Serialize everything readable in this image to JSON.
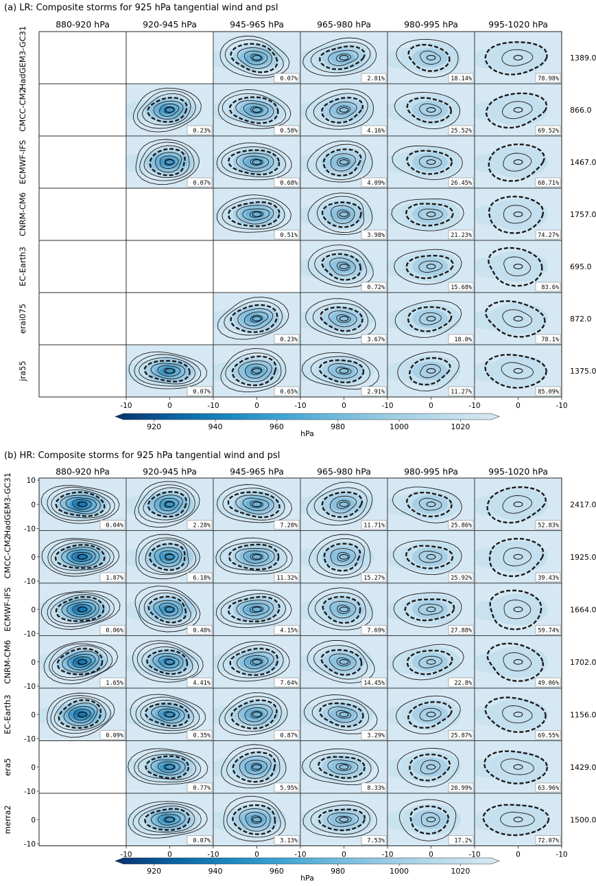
{
  "panels": [
    {
      "title": "(a) LR: Composite storms for 925 hPa tangential wind and psl",
      "columns": [
        "880-920 hPa",
        "920-945 hPa",
        "945-965 hPa",
        "965-980 hPa",
        "980-995 hPa",
        "995-1020 hPa"
      ],
      "rows": [
        {
          "model": "HadGEM3-GC31",
          "count": "1389.0",
          "cells": [
            null,
            null,
            "0.07%",
            "2.81%",
            "18.14%",
            "78.98%"
          ]
        },
        {
          "model": "CMCC-CM2",
          "count": "866.0",
          "cells": [
            null,
            "0.23%",
            "0.58%",
            "4.16%",
            "25.52%",
            "69.52%"
          ]
        },
        {
          "model": "ECMWF-IFS",
          "count": "1467.0",
          "cells": [
            null,
            "0.07%",
            "0.68%",
            "4.09%",
            "26.45%",
            "68.71%"
          ]
        },
        {
          "model": "CNRM-CM6",
          "count": "1757.0",
          "cells": [
            null,
            null,
            "0.51%",
            "3.98%",
            "21.23%",
            "74.27%"
          ]
        },
        {
          "model": "EC-Earth3",
          "count": "695.0",
          "cells": [
            null,
            null,
            null,
            "0.72%",
            "15.68%",
            "83.6%"
          ]
        },
        {
          "model": "erai075",
          "count": "872.0",
          "cells": [
            null,
            null,
            "0.23%",
            "3.67%",
            "18.0%",
            "78.1%"
          ]
        },
        {
          "model": "jra55",
          "count": "1375.0",
          "cells": [
            null,
            "0.07%",
            "0.65%",
            "2.91%",
            "11.27%",
            "85.09%"
          ]
        }
      ],
      "x_ticks": [
        "-10",
        "0",
        "-10",
        "0",
        "-10",
        "0",
        "-10",
        "0",
        "-10",
        "0",
        "-10",
        "0",
        "10"
      ],
      "y_ticks": [],
      "colorbar": {
        "ticks": [
          "920",
          "940",
          "960",
          "980",
          "1000",
          "1020"
        ],
        "label": "hPa"
      }
    },
    {
      "title": "(b) HR: Composite storms for 925 hPa tangential wind and psl",
      "columns": [
        "880-920 hPa",
        "920-945 hPa",
        "945-965 hPa",
        "965-980 hPa",
        "980-995 hPa",
        "995-1020 hPa"
      ],
      "rows": [
        {
          "model": "HadGEM3-GC31",
          "count": "2417.0",
          "cells": [
            "0.04%",
            "2.28%",
            "7.28%",
            "11.71%",
            "25.86%",
            "52.83%"
          ]
        },
        {
          "model": "CMCC-CM2",
          "count": "1925.0",
          "cells": [
            "1.87%",
            "6.18%",
            "11.32%",
            "15.27%",
            "25.92%",
            "39.43%"
          ]
        },
        {
          "model": "ECMWF-IFS",
          "count": "1664.0",
          "cells": [
            "0.06%",
            "0.48%",
            "4.15%",
            "7.69%",
            "27.88%",
            "59.74%"
          ]
        },
        {
          "model": "CNRM-CM6",
          "count": "1702.0",
          "cells": [
            "1.65%",
            "4.41%",
            "7.64%",
            "14.45%",
            "22.8%",
            "49.06%"
          ]
        },
        {
          "model": "EC-Earth3",
          "count": "1156.0",
          "cells": [
            "0.09%",
            "0.35%",
            "0.87%",
            "3.29%",
            "25.87%",
            "69.55%"
          ]
        },
        {
          "model": "era5",
          "count": "1429.0",
          "cells": [
            null,
            "0.77%",
            "5.95%",
            "8.33%",
            "20.99%",
            "63.96%"
          ]
        },
        {
          "model": "merra2",
          "count": "1500.0",
          "cells": [
            null,
            "0.07%",
            "3.13%",
            "7.53%",
            "17.2%",
            "72.07%"
          ]
        }
      ],
      "x_ticks": [
        "-10",
        "0",
        "-10",
        "0",
        "-10",
        "0",
        "-10",
        "0",
        "-10",
        "0",
        "-10",
        "0",
        "10"
      ],
      "y_ticks": [
        "10",
        "0",
        "-10"
      ],
      "colorbar": {
        "ticks": [
          "920",
          "940",
          "960",
          "980",
          "1000",
          "1020"
        ],
        "label": "hPa"
      }
    }
  ],
  "chart_data": [
    {
      "type": "heatmap",
      "title": "(a) LR: Composite storms for 925 hPa tangential wind and psl",
      "x": [
        "880-920 hPa",
        "920-945 hPa",
        "945-965 hPa",
        "965-980 hPa",
        "980-995 hPa",
        "995-1020 hPa"
      ],
      "y": [
        "HadGEM3-GC31",
        "CMCC-CM2",
        "ECMWF-IFS",
        "CNRM-CM6",
        "EC-Earth3",
        "erai075",
        "jra55"
      ],
      "values": [
        [
          null,
          null,
          0.07,
          2.81,
          18.14,
          78.98
        ],
        [
          null,
          0.23,
          0.58,
          4.16,
          25.52,
          69.52
        ],
        [
          null,
          0.07,
          0.68,
          4.09,
          26.45,
          68.71
        ],
        [
          null,
          null,
          0.51,
          3.98,
          21.23,
          74.27
        ],
        [
          null,
          null,
          null,
          0.72,
          15.68,
          83.6
        ],
        [
          null,
          null,
          0.23,
          3.67,
          18.0,
          78.1
        ],
        [
          null,
          0.07,
          0.65,
          2.91,
          11.27,
          85.09
        ]
      ],
      "row_totals": [
        1389.0,
        866.0,
        1467.0,
        1757.0,
        695.0,
        872.0,
        1375.0
      ],
      "subplot_xlim": [
        -10,
        10
      ],
      "colorbar": {
        "range": [
          910,
          1030
        ],
        "ticks": [
          920,
          940,
          960,
          980,
          1000,
          1020
        ],
        "label": "hPa",
        "colors": [
          "#08306b",
          "#0b5fa0",
          "#1786bf",
          "#3ea3d4",
          "#6fbadc",
          "#9ccce3",
          "#bddcec",
          "#d9eaf3"
        ]
      }
    },
    {
      "type": "heatmap",
      "title": "(b) HR: Composite storms for 925 hPa tangential wind and psl",
      "x": [
        "880-920 hPa",
        "920-945 hPa",
        "945-965 hPa",
        "965-980 hPa",
        "980-995 hPa",
        "995-1020 hPa"
      ],
      "y": [
        "HadGEM3-GC31",
        "CMCC-CM2",
        "ECMWF-IFS",
        "CNRM-CM6",
        "EC-Earth3",
        "era5",
        "merra2"
      ],
      "values": [
        [
          0.04,
          2.28,
          7.28,
          11.71,
          25.86,
          52.83
        ],
        [
          1.87,
          6.18,
          11.32,
          15.27,
          25.92,
          39.43
        ],
        [
          0.06,
          0.48,
          4.15,
          7.69,
          27.88,
          59.74
        ],
        [
          1.65,
          4.41,
          7.64,
          14.45,
          22.8,
          49.06
        ],
        [
          0.09,
          0.35,
          0.87,
          3.29,
          25.87,
          69.55
        ],
        [
          null,
          0.77,
          5.95,
          8.33,
          20.99,
          63.96
        ],
        [
          null,
          0.07,
          3.13,
          7.53,
          17.2,
          72.07
        ]
      ],
      "row_totals": [
        2417.0,
        1925.0,
        1664.0,
        1702.0,
        1156.0,
        1429.0,
        1500.0
      ],
      "subplot_xlim": [
        -10,
        10
      ],
      "subplot_ylim": [
        -10,
        10
      ],
      "colorbar": {
        "range": [
          910,
          1030
        ],
        "ticks": [
          920,
          940,
          960,
          980,
          1000,
          1020
        ],
        "label": "hPa",
        "colors": [
          "#08306b",
          "#0b5fa0",
          "#1786bf",
          "#3ea3d4",
          "#6fbadc",
          "#9ccce3",
          "#bddcec",
          "#d9eaf3"
        ]
      }
    }
  ]
}
